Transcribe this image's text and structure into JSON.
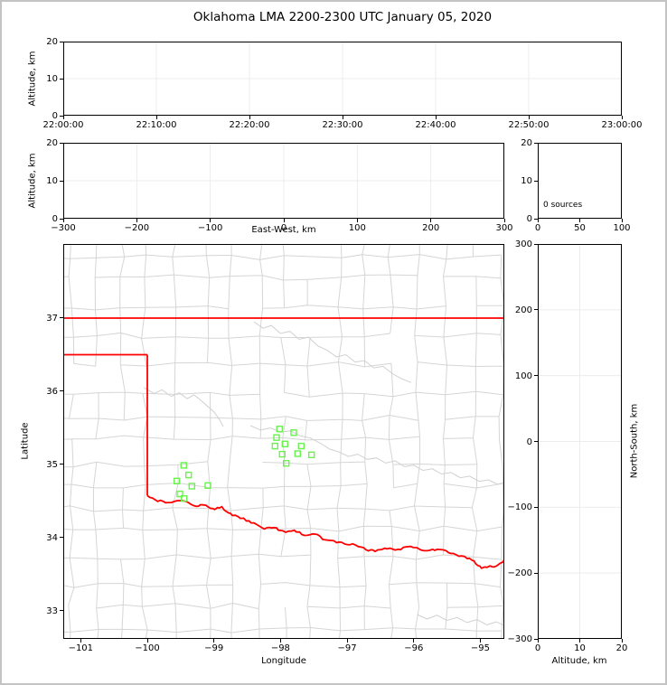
{
  "title": "Oklahoma LMA 2200-2300 UTC January 05, 2020",
  "labels": {
    "alt_top": "Altitude, km",
    "alt_mid": "Altitude, km",
    "east_west": "East-West, km",
    "longitude": "Longitude",
    "latitude": "Latitude",
    "north_south": "North-South, km",
    "alt_bottom": "Altitude, km",
    "sources": "0 sources"
  },
  "colors": {
    "state_border": "#ff0000",
    "county_line": "#d5d5d5",
    "gray_river": "#d0d0d0",
    "marker": "#6af24e",
    "grid": "#ececec",
    "spine": "#000000",
    "figure_border": "#c3c3c3"
  },
  "chart_data": {
    "type": "scatter",
    "figure_title": "Oklahoma LMA 2200-2300 UTC January 05, 2020",
    "panels": [
      {
        "id": "time_height",
        "type": "scatter",
        "xlabel": "",
        "ylabel": "Altitude, km",
        "xlim": [
          0,
          3600
        ],
        "ylim": [
          0,
          20
        ],
        "grid": true,
        "x_ticks": [
          {
            "v": 0,
            "l": "22:00:00"
          },
          {
            "v": 600,
            "l": "22:10:00"
          },
          {
            "v": 1200,
            "l": "22:20:00"
          },
          {
            "v": 1800,
            "l": "22:30:00"
          },
          {
            "v": 2400,
            "l": "22:40:00"
          },
          {
            "v": 3000,
            "l": "22:50:00"
          },
          {
            "v": 3600,
            "l": "23:00:00"
          }
        ],
        "y_ticks": [
          {
            "v": 0,
            "l": "0"
          },
          {
            "v": 10,
            "l": "10"
          },
          {
            "v": 20,
            "l": "20"
          }
        ],
        "points": []
      },
      {
        "id": "ew_height",
        "type": "scatter",
        "xlabel": "East-West, km",
        "ylabel": "Altitude, km",
        "xlim": [
          -300,
          300
        ],
        "ylim": [
          0,
          20
        ],
        "grid": true,
        "x_ticks": [
          {
            "v": -300,
            "l": "−300"
          },
          {
            "v": -200,
            "l": "−200"
          },
          {
            "v": -100,
            "l": "−100"
          },
          {
            "v": 0,
            "l": "0"
          },
          {
            "v": 100,
            "l": "100"
          },
          {
            "v": 200,
            "l": "200"
          },
          {
            "v": 300,
            "l": "300"
          }
        ],
        "y_ticks": [
          {
            "v": 0,
            "l": "0"
          },
          {
            "v": 10,
            "l": "10"
          },
          {
            "v": 20,
            "l": "20"
          }
        ],
        "points": []
      },
      {
        "id": "alt_hist",
        "type": "line",
        "xlabel": "",
        "ylabel": "",
        "xlim": [
          0,
          100
        ],
        "ylim": [
          0,
          20
        ],
        "grid": false,
        "annotation": "0 sources",
        "x_ticks": [
          {
            "v": 0,
            "l": "0"
          },
          {
            "v": 50,
            "l": "50"
          },
          {
            "v": 100,
            "l": "100"
          }
        ],
        "y_ticks": [
          {
            "v": 0,
            "l": "0"
          },
          {
            "v": 10,
            "l": "10"
          },
          {
            "v": 20,
            "l": "20"
          }
        ],
        "points": []
      },
      {
        "id": "plan_map",
        "type": "scatter",
        "xlabel": "Longitude",
        "ylabel": "Latitude",
        "xlim": [
          -101.262,
          -94.64
        ],
        "ylim": [
          32.617,
          38.012
        ],
        "grid": false,
        "x_ticks": [
          {
            "v": -101,
            "l": "−101"
          },
          {
            "v": -100,
            "l": "−100"
          },
          {
            "v": -99,
            "l": "−99"
          },
          {
            "v": -98,
            "l": "−98"
          },
          {
            "v": -97,
            "l": "−97"
          },
          {
            "v": -96,
            "l": "−96"
          },
          {
            "v": -95,
            "l": "−95"
          }
        ],
        "y_ticks": [
          {
            "v": 33,
            "l": "33"
          },
          {
            "v": 34,
            "l": "34"
          },
          {
            "v": 35,
            "l": "35"
          },
          {
            "v": 36,
            "l": "36"
          },
          {
            "v": 37,
            "l": "37"
          }
        ],
        "sources": [
          [
            -99.453,
            34.988
          ],
          [
            -99.38,
            34.856
          ],
          [
            -99.556,
            34.774
          ],
          [
            -99.331,
            34.704
          ],
          [
            -99.091,
            34.712
          ],
          [
            -99.512,
            34.597
          ],
          [
            -99.448,
            34.535
          ],
          [
            -98.015,
            35.485
          ],
          [
            -97.802,
            35.436
          ],
          [
            -98.06,
            35.367
          ],
          [
            -97.934,
            35.28
          ],
          [
            -98.083,
            35.251
          ],
          [
            -97.689,
            35.251
          ],
          [
            -97.743,
            35.148
          ],
          [
            -97.974,
            35.14
          ],
          [
            -97.534,
            35.132
          ],
          [
            -97.914,
            35.016
          ]
        ],
        "state_border": {
          "north": [
            [
              -101.3,
              37.0
            ],
            [
              -94.6,
              37.0
            ]
          ],
          "panhandle_south": [
            [
              -101.3,
              36.5
            ],
            [
              -100.0,
              36.5
            ]
          ],
          "meridian_100w": [
            [
              -100.0,
              36.5
            ],
            [
              -100.0,
              34.575
            ]
          ]
        },
        "red_river": [
          [
            -100.0,
            34.575
          ],
          [
            -99.88,
            34.52
          ],
          [
            -99.76,
            34.49
          ],
          [
            -99.64,
            34.47
          ],
          [
            -99.52,
            34.5
          ],
          [
            -99.42,
            34.5
          ],
          [
            -99.3,
            34.43
          ],
          [
            -99.16,
            34.44
          ],
          [
            -99.02,
            34.39
          ],
          [
            -98.88,
            34.41
          ],
          [
            -98.72,
            34.31
          ],
          [
            -98.56,
            34.26
          ],
          [
            -98.4,
            34.19
          ],
          [
            -98.24,
            34.13
          ],
          [
            -98.1,
            34.14
          ],
          [
            -97.96,
            34.08
          ],
          [
            -97.8,
            34.1
          ],
          [
            -97.64,
            34.03
          ],
          [
            -97.48,
            34.05
          ],
          [
            -97.32,
            33.97
          ],
          [
            -97.16,
            33.94
          ],
          [
            -97.0,
            33.92
          ],
          [
            -96.84,
            33.89
          ],
          [
            -96.68,
            33.83
          ],
          [
            -96.54,
            33.82
          ],
          [
            -96.4,
            33.86
          ],
          [
            -96.24,
            33.84
          ],
          [
            -96.08,
            33.88
          ],
          [
            -95.92,
            33.85
          ],
          [
            -95.76,
            33.82
          ],
          [
            -95.6,
            33.85
          ],
          [
            -95.44,
            33.78
          ],
          [
            -95.28,
            33.75
          ],
          [
            -95.12,
            33.7
          ],
          [
            -94.98,
            33.58
          ],
          [
            -94.86,
            33.6
          ],
          [
            -94.76,
            33.62
          ],
          [
            -94.64,
            33.7
          ]
        ],
        "gray_rivers": [
          [
            [
              -98.4,
              36.95
            ],
            [
              -98.26,
              36.86
            ],
            [
              -98.14,
              36.9
            ],
            [
              -98.0,
              36.79
            ],
            [
              -97.86,
              36.82
            ],
            [
              -97.72,
              36.71
            ],
            [
              -97.58,
              36.74
            ],
            [
              -97.44,
              36.62
            ],
            [
              -97.3,
              36.56
            ],
            [
              -97.16,
              36.47
            ],
            [
              -97.02,
              36.5
            ],
            [
              -96.88,
              36.4
            ],
            [
              -96.74,
              36.42
            ],
            [
              -96.6,
              36.32
            ],
            [
              -96.46,
              36.34
            ],
            [
              -96.32,
              36.24
            ],
            [
              -96.18,
              36.17
            ],
            [
              -96.04,
              36.12
            ]
          ],
          [
            [
              -100.05,
              36.05
            ],
            [
              -99.9,
              35.97
            ],
            [
              -99.78,
              36.02
            ],
            [
              -99.64,
              35.93
            ],
            [
              -99.52,
              35.98
            ],
            [
              -99.4,
              35.9
            ],
            [
              -99.3,
              35.95
            ],
            [
              -99.2,
              35.88
            ],
            [
              -99.1,
              35.8
            ],
            [
              -99.0,
              35.72
            ],
            [
              -98.92,
              35.62
            ],
            [
              -98.86,
              35.52
            ]
          ],
          [
            [
              -98.45,
              35.53
            ],
            [
              -98.3,
              35.47
            ],
            [
              -98.15,
              35.5
            ],
            [
              -98.0,
              35.44
            ],
            [
              -97.85,
              35.46
            ],
            [
              -97.7,
              35.39
            ],
            [
              -97.55,
              35.36
            ],
            [
              -97.4,
              35.29
            ],
            [
              -97.26,
              35.21
            ],
            [
              -97.12,
              35.17
            ],
            [
              -96.98,
              35.11
            ],
            [
              -96.84,
              35.14
            ],
            [
              -96.7,
              35.07
            ],
            [
              -96.56,
              35.09
            ],
            [
              -96.42,
              35.02
            ],
            [
              -96.28,
              35.05
            ],
            [
              -96.14,
              34.97
            ],
            [
              -96.0,
              34.99
            ],
            [
              -95.86,
              34.92
            ],
            [
              -95.72,
              34.94
            ],
            [
              -95.58,
              34.87
            ],
            [
              -95.44,
              34.89
            ],
            [
              -95.3,
              34.82
            ],
            [
              -95.16,
              34.84
            ],
            [
              -95.02,
              34.77
            ],
            [
              -94.88,
              34.79
            ],
            [
              -94.74,
              34.73
            ],
            [
              -94.64,
              34.75
            ]
          ],
          [
            [
              -95.95,
              32.95
            ],
            [
              -95.8,
              32.89
            ],
            [
              -95.65,
              32.94
            ],
            [
              -95.5,
              32.87
            ],
            [
              -95.35,
              32.91
            ],
            [
              -95.2,
              32.84
            ],
            [
              -95.05,
              32.88
            ],
            [
              -94.9,
              32.81
            ],
            [
              -94.76,
              32.85
            ],
            [
              -94.64,
              32.8
            ]
          ]
        ],
        "county_mesh": {
          "seed": 11,
          "lon_step": 0.42,
          "lat_step": 0.345,
          "jitter": 0.09,
          "edge_prob": 0.9
        },
        "river_jitter": {
          "seed": 99,
          "amp": 0.03,
          "step": 0.04
        }
      },
      {
        "id": "ns_alt",
        "type": "scatter",
        "xlabel": "Altitude, km",
        "ylabel": "North-South, km",
        "xlim": [
          0,
          20
        ],
        "ylim": [
          -300,
          300
        ],
        "grid": true,
        "x_ticks": [
          {
            "v": 0,
            "l": "0"
          },
          {
            "v": 10,
            "l": "10"
          },
          {
            "v": 20,
            "l": "20"
          }
        ],
        "y_ticks": [
          {
            "v": -300,
            "l": "−300"
          },
          {
            "v": -200,
            "l": "−200"
          },
          {
            "v": -100,
            "l": "−100"
          },
          {
            "v": 0,
            "l": "0"
          },
          {
            "v": 100,
            "l": "100"
          },
          {
            "v": 200,
            "l": "200"
          },
          {
            "v": 300,
            "l": "300"
          }
        ],
        "points": []
      }
    ]
  }
}
